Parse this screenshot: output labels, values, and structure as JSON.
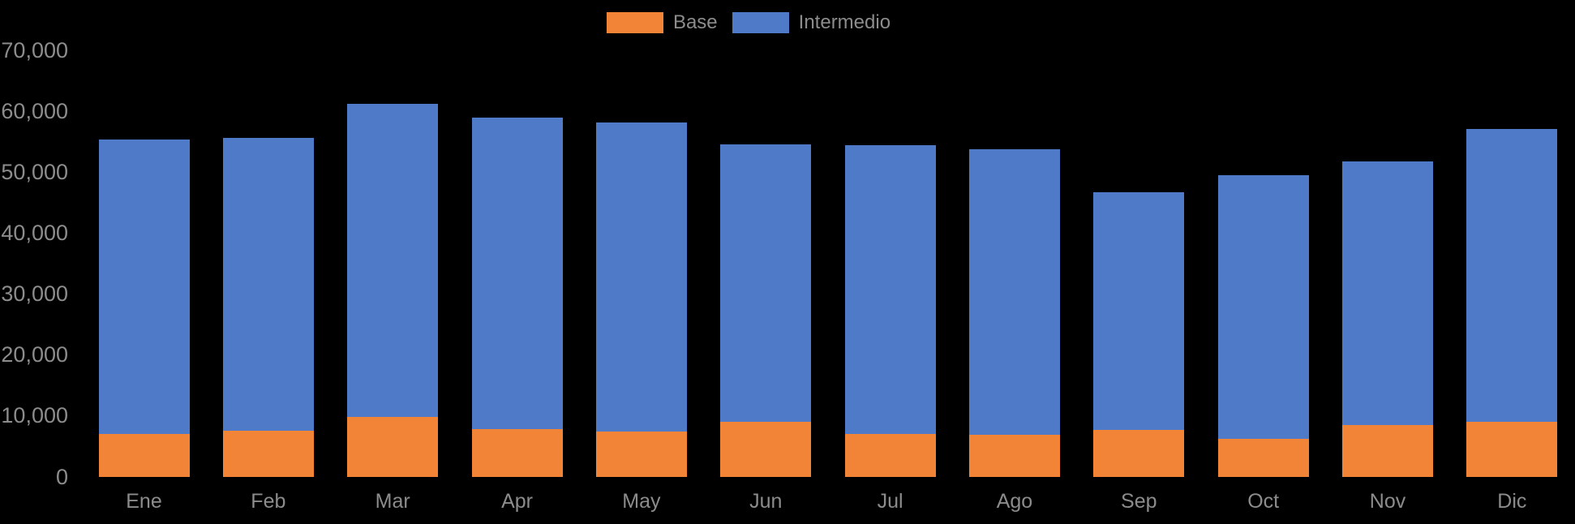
{
  "chart_data": {
    "type": "bar",
    "stacked": true,
    "title": "",
    "xlabel": "",
    "ylabel": "",
    "categories": [
      "Ene",
      "Feb",
      "Mar",
      "Apr",
      "May",
      "Jun",
      "Jul",
      "Ago",
      "Sep",
      "Oct",
      "Nov",
      "Dic"
    ],
    "series": [
      {
        "name": "Base",
        "color": "#F28438",
        "values": [
          7100,
          7600,
          9800,
          7900,
          7500,
          9000,
          7000,
          6900,
          7700,
          6300,
          8500,
          9100
        ]
      },
      {
        "name": "Intermedio",
        "color": "#4E7AC8",
        "values": [
          48200,
          48000,
          51400,
          51000,
          50600,
          45500,
          47400,
          46900,
          39000,
          43200,
          43300,
          48000
        ]
      }
    ],
    "stack_totals": [
      55300,
      55600,
      61200,
      58900,
      58100,
      54500,
      54400,
      53800,
      46700,
      49500,
      51800,
      57100
    ],
    "ylim": [
      0,
      70000
    ],
    "ytick_step": 10000,
    "ytick_labels": [
      "0",
      "10,000",
      "20,000",
      "30,000",
      "40,000",
      "50,000",
      "60,000",
      "70,000"
    ],
    "legend": {
      "position": "top-center",
      "items": [
        "Base",
        "Intermedio"
      ]
    },
    "grid": false,
    "background_color": "#000000",
    "text_color": "#8C8C8C"
  }
}
